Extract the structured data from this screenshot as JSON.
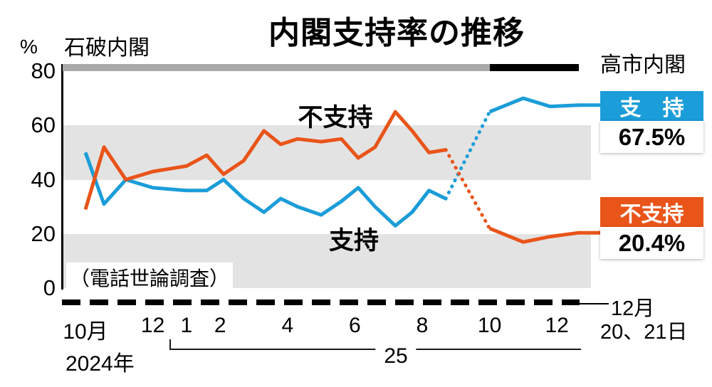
{
  "era": {
    "ishiba": "石破内閣",
    "takaichi": "高市内閣"
  },
  "legend": {
    "approve": {
      "label": "支　持",
      "value": "67.5%",
      "color": "#1b9dd9"
    },
    "disapprove": {
      "label": "不支持",
      "value": "20.4%",
      "color": "#e95419"
    }
  },
  "axis": {
    "end_date_line1": "12月",
    "end_date_line2": "20、21日",
    "year_start": "2024年",
    "year_next": "25"
  },
  "chart_data": {
    "type": "line",
    "title": "内閣支持率の推移",
    "ylabel": "%",
    "note": "（電話世論調査）",
    "ylim": [
      0,
      80
    ],
    "y_ticks": [
      0,
      20,
      40,
      60,
      80
    ],
    "bands_shaded": [
      [
        0,
        20
      ],
      [
        40,
        60
      ]
    ],
    "legend_position": "right",
    "x_unit": "months since Oct 2024",
    "x": [
      0,
      0.55,
      1.2,
      2,
      3,
      3.6,
      4.1,
      4.7,
      5.3,
      5.8,
      6.3,
      7,
      7.6,
      8.1,
      8.6,
      9.2,
      9.7,
      10.2,
      10.7,
      12,
      13,
      13.8,
      14.65
    ],
    "x_ticks": [
      {
        "label": "10月",
        "m": 0
      },
      {
        "label": "12",
        "m": 2
      },
      {
        "label": "1",
        "m": 3
      },
      {
        "label": "2",
        "m": 4
      },
      {
        "label": "4",
        "m": 6
      },
      {
        "label": "6",
        "m": 8
      },
      {
        "label": "8",
        "m": 10
      },
      {
        "label": "10",
        "m": 12
      },
      {
        "label": "12",
        "m": 14
      }
    ],
    "series": [
      {
        "name": "支持",
        "color": "#1b9dd9",
        "final_value_label": "67.5%",
        "values": [
          50,
          31,
          40,
          37,
          36,
          36,
          40,
          33,
          28,
          33,
          30,
          27,
          32,
          37,
          30,
          23,
          28,
          36,
          33,
          65,
          70,
          67,
          67.5
        ]
      },
      {
        "name": "不支持",
        "color": "#e95419",
        "final_value_label": "20.4%",
        "values": [
          29,
          52,
          40,
          43,
          45,
          49,
          42,
          47,
          58,
          53,
          55,
          54,
          55,
          48,
          52,
          65,
          58,
          50,
          51,
          22,
          17,
          19,
          20.4
        ]
      }
    ],
    "dotted_gap_between_points": [
      18,
      19
    ]
  }
}
